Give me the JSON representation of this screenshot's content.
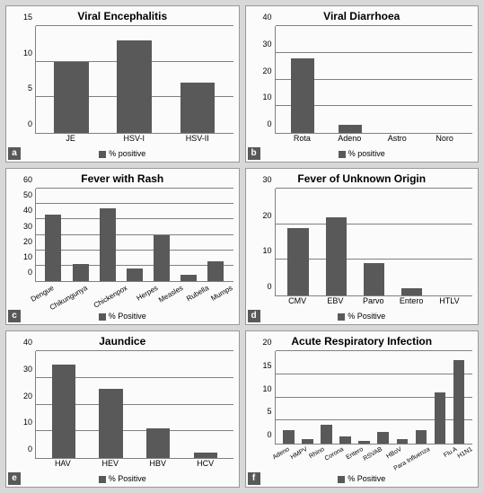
{
  "background_color": "#d8d8d8",
  "panel_bg": "#fbfbfb",
  "bar_color": "#595959",
  "grid_color": "#808080",
  "text_color": "#000000",
  "panels": [
    {
      "key": "a",
      "title": "Viral Encephalitis",
      "legend": "% positive",
      "ymax": 15,
      "ystep": 5,
      "bar_width_pct": 55,
      "label_rotate": false,
      "extra_bottom": 14,
      "categories": [
        "JE",
        "HSV-I",
        "HSV-II"
      ],
      "values": [
        10,
        13,
        7
      ]
    },
    {
      "key": "b",
      "title": "Viral Diarrhoea",
      "legend": "% positive",
      "ymax": 40,
      "ystep": 10,
      "bar_width_pct": 50,
      "label_rotate": false,
      "extra_bottom": 14,
      "categories": [
        "Rota",
        "Adeno",
        "Astro",
        "Noro"
      ],
      "values": [
        28,
        3,
        0,
        0
      ]
    },
    {
      "key": "c",
      "title": "Fever with Rash",
      "legend": "% Positive",
      "ymax": 60,
      "ystep": 10,
      "bar_width_pct": 60,
      "label_rotate": true,
      "extra_bottom": 30,
      "categories": [
        "Dengue",
        "Chikungunya",
        "Chickenpox",
        "Herpes",
        "Measles",
        "Rubella",
        "Mumps"
      ],
      "values": [
        43,
        11,
        47,
        8,
        30,
        4,
        13
      ]
    },
    {
      "key": "d",
      "title": "Fever of Unknown Origin",
      "legend": "% Positive",
      "ymax": 30,
      "ystep": 10,
      "bar_width_pct": 55,
      "label_rotate": false,
      "extra_bottom": 14,
      "categories": [
        "CMV",
        "EBV",
        "Parvo",
        "Entero",
        "HTLV"
      ],
      "values": [
        19,
        22,
        9,
        2,
        0
      ]
    },
    {
      "key": "e",
      "title": "Jaundice",
      "legend": "% Positive",
      "ymax": 40,
      "ystep": 10,
      "bar_width_pct": 50,
      "label_rotate": false,
      "extra_bottom": 14,
      "categories": [
        "HAV",
        "HEV",
        "HBV",
        "HCV"
      ],
      "values": [
        35,
        26,
        11,
        2
      ]
    },
    {
      "key": "f",
      "title": "Acute Respiratory Infection",
      "legend": "% Positive",
      "ymax": 20,
      "ystep": 5,
      "bar_width_pct": 60,
      "label_rotate": true,
      "extra_bottom": 30,
      "categories": [
        "Adeno",
        "HMPV",
        "Rhino",
        "Corona",
        "Entero",
        "RSVAB",
        "HBoV",
        "Para Influenza",
        "Flu A",
        "H1N1"
      ],
      "values": [
        3,
        1,
        4,
        1.5,
        0.5,
        2.5,
        1,
        3,
        11,
        18
      ]
    }
  ]
}
